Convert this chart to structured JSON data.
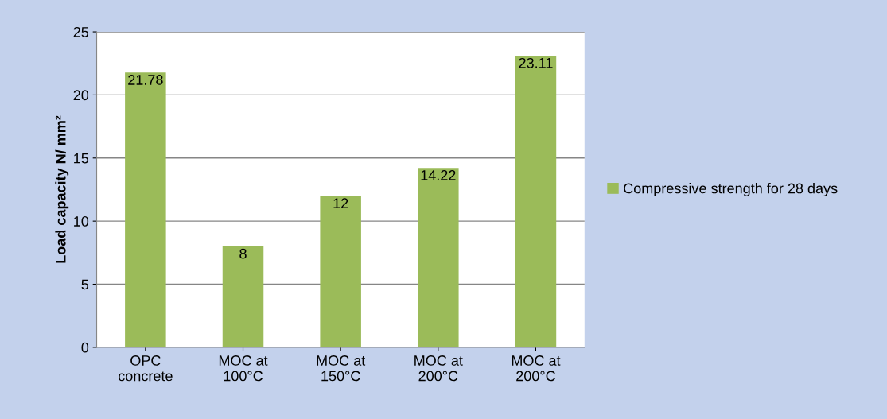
{
  "chart_data": {
    "type": "bar",
    "ylabel": "Load capacity N/ mm²",
    "categories": [
      "OPC\nconcrete",
      "MOC at\n100°C",
      "MOC at\n150°C",
      "MOC at\n200°C",
      "MOC at\n200°C"
    ],
    "series": [
      {
        "name": "Compressive strength for 28 days",
        "color": "#9bbb59",
        "values": [
          21.78,
          8,
          12,
          14.22,
          23.11
        ]
      }
    ],
    "ylim": [
      0,
      25
    ],
    "yticks": [
      0,
      5,
      10,
      15,
      20,
      25
    ],
    "grid": "y",
    "legend": "right",
    "data_labels": true
  }
}
